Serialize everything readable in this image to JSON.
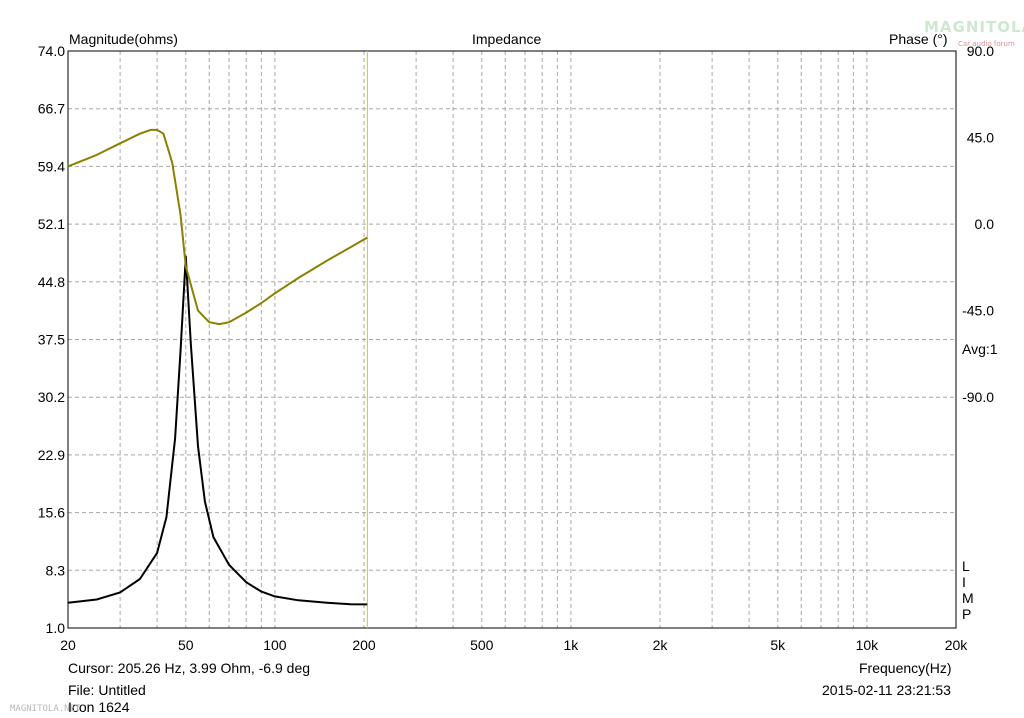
{
  "chart_data": {
    "type": "line",
    "title": "Impedance",
    "ylabel_left": "Magnitude(ohms)",
    "ylabel_right": "Phase (°)",
    "xlabel": "Frequency(Hz)",
    "x_scale": "log",
    "xlim": [
      20,
      20000
    ],
    "ylim_left": [
      1.0,
      74.0
    ],
    "ylim_right": [
      -210,
      90
    ],
    "y_ticks_left": [
      "74.0",
      "66.7",
      "59.4",
      "52.1",
      "44.8",
      "37.5",
      "30.2",
      "22.9",
      "15.6",
      "8.3",
      "1.0"
    ],
    "y_ticks_right": [
      "90.0",
      "45.0",
      "0.0",
      "-45.0",
      "-90.0"
    ],
    "y_ticks_right_values": [
      90,
      45,
      0,
      -45,
      -90
    ],
    "x_ticks": [
      {
        "value": 20,
        "label": "20"
      },
      {
        "value": 50,
        "label": "50"
      },
      {
        "value": 100,
        "label": "100"
      },
      {
        "value": 200,
        "label": "200"
      },
      {
        "value": 500,
        "label": "500"
      },
      {
        "value": 1000,
        "label": "1k"
      },
      {
        "value": 2000,
        "label": "2k"
      },
      {
        "value": 5000,
        "label": "5k"
      },
      {
        "value": 10000,
        "label": "10k"
      },
      {
        "value": 20000,
        "label": "20k"
      }
    ],
    "grid": true,
    "cursor_hz": 205.26,
    "series": [
      {
        "axis": "left",
        "color": "#000000",
        "points": [
          [
            20,
            4.2
          ],
          [
            25,
            4.6
          ],
          [
            30,
            5.5
          ],
          [
            35,
            7.2
          ],
          [
            40,
            10.5
          ],
          [
            43,
            15.0
          ],
          [
            46,
            25.0
          ],
          [
            48,
            36.0
          ],
          [
            50,
            48.0
          ],
          [
            52,
            37.0
          ],
          [
            55,
            24.0
          ],
          [
            58,
            17.0
          ],
          [
            62,
            12.5
          ],
          [
            70,
            9.0
          ],
          [
            80,
            6.8
          ],
          [
            90,
            5.6
          ],
          [
            100,
            5.0
          ],
          [
            120,
            4.5
          ],
          [
            150,
            4.2
          ],
          [
            180,
            4.0
          ],
          [
            205,
            3.99
          ]
        ]
      },
      {
        "axis": "right",
        "color": "#8b8000",
        "points": [
          [
            20,
            30
          ],
          [
            25,
            36
          ],
          [
            30,
            42
          ],
          [
            35,
            47
          ],
          [
            38,
            49
          ],
          [
            40,
            49
          ],
          [
            42,
            47
          ],
          [
            45,
            32
          ],
          [
            48,
            5
          ],
          [
            50,
            -22
          ],
          [
            55,
            -45
          ],
          [
            60,
            -51
          ],
          [
            65,
            -52
          ],
          [
            70,
            -51
          ],
          [
            80,
            -46
          ],
          [
            90,
            -41
          ],
          [
            100,
            -36
          ],
          [
            120,
            -28
          ],
          [
            150,
            -19
          ],
          [
            180,
            -12
          ],
          [
            205,
            -7
          ]
        ]
      }
    ],
    "side_text": "Avg:1",
    "limp_text": [
      "L",
      "I",
      "M",
      "P"
    ]
  },
  "footer": {
    "cursor": "Cursor: 205.26 Hz, 3.99 Ohm, -6.9 deg",
    "file": "File: Untitled",
    "note": "Icon 1624",
    "datetime": "2015-02-11 23:21:53"
  },
  "watermark": "MAGNITOLA.NET",
  "logo_text": "MAGNITOLA",
  "logo_sub": "Car audio forum"
}
